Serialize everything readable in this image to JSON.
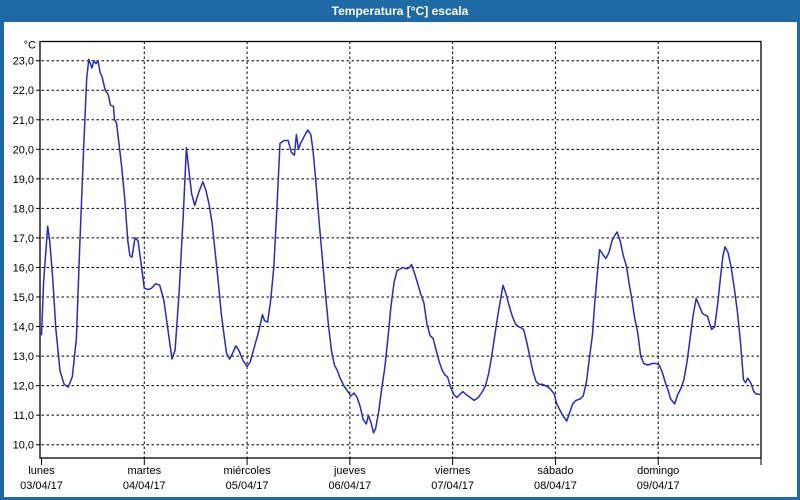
{
  "window": {
    "title": "Temperatura [°C] escala"
  },
  "colors": {
    "titlebar_bg": "#1f6aa5",
    "titlebar_text": "#ffffff",
    "window_border": "#1f6aa5",
    "canvas_bg": "#fdfefe",
    "line": "#2b2bb8",
    "grid": "#000000",
    "axis": "#000000",
    "label_text": "#000000"
  },
  "chart_data": {
    "type": "line",
    "title": "Temperatura [°C] escala",
    "y_unit_label": "°C",
    "ylim": [
      9.55,
      23.65
    ],
    "grid": "dashed",
    "legend": "none",
    "y_ticks": [
      {
        "value": 23,
        "label": "23,0"
      },
      {
        "value": 22,
        "label": "22,0"
      },
      {
        "value": 21,
        "label": "21,0"
      },
      {
        "value": 20,
        "label": "20,0"
      },
      {
        "value": 19,
        "label": "19,0"
      },
      {
        "value": 18,
        "label": "18,0"
      },
      {
        "value": 17,
        "label": "17,0"
      },
      {
        "value": 16,
        "label": "16,0"
      },
      {
        "value": 15,
        "label": "15,0"
      },
      {
        "value": 14,
        "label": "14,0"
      },
      {
        "value": 13,
        "label": "13,0"
      },
      {
        "value": 12,
        "label": "12,0"
      },
      {
        "value": 11,
        "label": "11,0"
      },
      {
        "value": 10,
        "label": "10,0"
      }
    ],
    "x_days": [
      {
        "weekday": "lunes",
        "date": "03/04/17"
      },
      {
        "weekday": "martes",
        "date": "04/04/17"
      },
      {
        "weekday": "miércoles",
        "date": "05/04/17"
      },
      {
        "weekday": "jueves",
        "date": "06/04/17"
      },
      {
        "weekday": "viernes",
        "date": "07/04/17"
      },
      {
        "weekday": "sábado",
        "date": "08/04/17"
      },
      {
        "weekday": "domingo",
        "date": "09/04/17"
      }
    ],
    "x_range_days": [
      0,
      7
    ],
    "series": [
      {
        "name": "Temperatura",
        "points": [
          [
            0.0,
            13.7
          ],
          [
            0.02,
            15.5
          ],
          [
            0.06,
            17.4
          ],
          [
            0.08,
            16.9
          ],
          [
            0.11,
            15.6
          ],
          [
            0.14,
            13.9
          ],
          [
            0.18,
            12.5
          ],
          [
            0.22,
            12.05
          ],
          [
            0.26,
            11.95
          ],
          [
            0.3,
            12.3
          ],
          [
            0.34,
            13.6
          ],
          [
            0.37,
            16.5
          ],
          [
            0.41,
            20.0
          ],
          [
            0.44,
            22.4
          ],
          [
            0.46,
            23.05
          ],
          [
            0.49,
            22.75
          ],
          [
            0.51,
            23.0
          ],
          [
            0.53,
            22.9
          ],
          [
            0.55,
            23.0
          ],
          [
            0.57,
            22.6
          ],
          [
            0.59,
            22.45
          ],
          [
            0.62,
            22.0
          ],
          [
            0.65,
            21.85
          ],
          [
            0.67,
            21.5
          ],
          [
            0.7,
            21.45
          ],
          [
            0.71,
            21.0
          ],
          [
            0.73,
            20.9
          ],
          [
            0.75,
            20.3
          ],
          [
            0.78,
            19.4
          ],
          [
            0.81,
            18.3
          ],
          [
            0.84,
            16.9
          ],
          [
            0.86,
            16.4
          ],
          [
            0.88,
            16.35
          ],
          [
            0.91,
            17.0
          ],
          [
            0.94,
            16.9
          ],
          [
            0.97,
            16.1
          ],
          [
            1.0,
            15.3
          ],
          [
            1.04,
            15.25
          ],
          [
            1.07,
            15.3
          ],
          [
            1.11,
            15.45
          ],
          [
            1.15,
            15.4
          ],
          [
            1.19,
            14.9
          ],
          [
            1.23,
            13.9
          ],
          [
            1.27,
            12.9
          ],
          [
            1.3,
            13.2
          ],
          [
            1.34,
            15.2
          ],
          [
            1.38,
            17.8
          ],
          [
            1.41,
            20.05
          ],
          [
            1.43,
            19.4
          ],
          [
            1.46,
            18.5
          ],
          [
            1.49,
            18.1
          ],
          [
            1.53,
            18.55
          ],
          [
            1.57,
            18.9
          ],
          [
            1.6,
            18.6
          ],
          [
            1.63,
            18.15
          ],
          [
            1.66,
            17.5
          ],
          [
            1.69,
            16.5
          ],
          [
            1.72,
            15.5
          ],
          [
            1.75,
            14.4
          ],
          [
            1.78,
            13.6
          ],
          [
            1.8,
            13.1
          ],
          [
            1.83,
            12.9
          ],
          [
            1.86,
            13.1
          ],
          [
            1.89,
            13.35
          ],
          [
            1.92,
            13.2
          ],
          [
            1.96,
            12.85
          ],
          [
            2.0,
            12.65
          ],
          [
            2.03,
            12.8
          ],
          [
            2.07,
            13.3
          ],
          [
            2.11,
            13.8
          ],
          [
            2.15,
            14.4
          ],
          [
            2.17,
            14.2
          ],
          [
            2.2,
            14.15
          ],
          [
            2.23,
            14.9
          ],
          [
            2.26,
            16.0
          ],
          [
            2.29,
            18.0
          ],
          [
            2.32,
            20.2
          ],
          [
            2.36,
            20.3
          ],
          [
            2.4,
            20.3
          ],
          [
            2.43,
            19.9
          ],
          [
            2.46,
            19.8
          ],
          [
            2.48,
            20.5
          ],
          [
            2.5,
            20.0
          ],
          [
            2.52,
            20.2
          ],
          [
            2.55,
            20.4
          ],
          [
            2.59,
            20.65
          ],
          [
            2.62,
            20.5
          ],
          [
            2.64,
            20.0
          ],
          [
            2.67,
            18.9
          ],
          [
            2.7,
            17.6
          ],
          [
            2.73,
            16.4
          ],
          [
            2.76,
            15.2
          ],
          [
            2.79,
            14.1
          ],
          [
            2.82,
            13.2
          ],
          [
            2.85,
            12.7
          ],
          [
            2.88,
            12.5
          ],
          [
            2.9,
            12.3
          ],
          [
            2.94,
            12.0
          ],
          [
            2.98,
            11.8
          ],
          [
            3.01,
            11.65
          ],
          [
            3.04,
            11.75
          ],
          [
            3.07,
            11.6
          ],
          [
            3.1,
            11.3
          ],
          [
            3.13,
            10.85
          ],
          [
            3.16,
            10.7
          ],
          [
            3.18,
            11.0
          ],
          [
            3.21,
            10.7
          ],
          [
            3.23,
            10.4
          ],
          [
            3.25,
            10.55
          ],
          [
            3.28,
            11.1
          ],
          [
            3.31,
            11.9
          ],
          [
            3.34,
            12.6
          ],
          [
            3.37,
            13.6
          ],
          [
            3.4,
            14.7
          ],
          [
            3.43,
            15.5
          ],
          [
            3.46,
            15.9
          ],
          [
            3.49,
            15.95
          ],
          [
            3.52,
            16.0
          ],
          [
            3.55,
            15.95
          ],
          [
            3.58,
            16.0
          ],
          [
            3.6,
            16.1
          ],
          [
            3.63,
            15.8
          ],
          [
            3.66,
            15.45
          ],
          [
            3.69,
            15.1
          ],
          [
            3.72,
            14.8
          ],
          [
            3.75,
            14.1
          ],
          [
            3.78,
            13.7
          ],
          [
            3.81,
            13.6
          ],
          [
            3.84,
            13.2
          ],
          [
            3.87,
            12.8
          ],
          [
            3.9,
            12.5
          ],
          [
            3.93,
            12.35
          ],
          [
            3.95,
            12.3
          ],
          [
            3.98,
            11.95
          ],
          [
            4.01,
            11.7
          ],
          [
            4.04,
            11.6
          ],
          [
            4.07,
            11.7
          ],
          [
            4.1,
            11.8
          ],
          [
            4.13,
            11.7
          ],
          [
            4.17,
            11.6
          ],
          [
            4.21,
            11.5
          ],
          [
            4.25,
            11.6
          ],
          [
            4.29,
            11.8
          ],
          [
            4.32,
            12.0
          ],
          [
            4.35,
            12.4
          ],
          [
            4.38,
            13.0
          ],
          [
            4.41,
            13.7
          ],
          [
            4.44,
            14.4
          ],
          [
            4.47,
            15.0
          ],
          [
            4.49,
            15.4
          ],
          [
            4.52,
            15.1
          ],
          [
            4.55,
            14.7
          ],
          [
            4.58,
            14.35
          ],
          [
            4.61,
            14.1
          ],
          [
            4.64,
            14.0
          ],
          [
            4.67,
            13.95
          ],
          [
            4.69,
            13.9
          ],
          [
            4.72,
            13.5
          ],
          [
            4.75,
            13.0
          ],
          [
            4.78,
            12.5
          ],
          [
            4.81,
            12.15
          ],
          [
            4.84,
            12.05
          ],
          [
            4.87,
            12.05
          ],
          [
            4.9,
            12.0
          ],
          [
            4.93,
            11.95
          ],
          [
            4.96,
            11.85
          ],
          [
            4.99,
            11.7
          ],
          [
            5.01,
            11.4
          ],
          [
            5.04,
            11.2
          ],
          [
            5.07,
            11.0
          ],
          [
            5.11,
            10.8
          ],
          [
            5.14,
            11.1
          ],
          [
            5.17,
            11.4
          ],
          [
            5.2,
            11.5
          ],
          [
            5.24,
            11.55
          ],
          [
            5.27,
            11.65
          ],
          [
            5.3,
            12.1
          ],
          [
            5.33,
            12.9
          ],
          [
            5.36,
            13.7
          ],
          [
            5.38,
            14.7
          ],
          [
            5.41,
            15.9
          ],
          [
            5.43,
            16.6
          ],
          [
            5.46,
            16.45
          ],
          [
            5.49,
            16.3
          ],
          [
            5.52,
            16.5
          ],
          [
            5.55,
            16.9
          ],
          [
            5.58,
            17.1
          ],
          [
            5.6,
            17.2
          ],
          [
            5.63,
            16.9
          ],
          [
            5.66,
            16.4
          ],
          [
            5.69,
            16.05
          ],
          [
            5.72,
            15.4
          ],
          [
            5.74,
            15.0
          ],
          [
            5.77,
            14.3
          ],
          [
            5.8,
            13.8
          ],
          [
            5.83,
            13.0
          ],
          [
            5.86,
            12.75
          ],
          [
            5.9,
            12.7
          ],
          [
            5.94,
            12.75
          ],
          [
            5.98,
            12.75
          ],
          [
            6.01,
            12.7
          ],
          [
            6.04,
            12.45
          ],
          [
            6.07,
            12.1
          ],
          [
            6.1,
            11.8
          ],
          [
            6.12,
            11.55
          ],
          [
            6.16,
            11.38
          ],
          [
            6.19,
            11.7
          ],
          [
            6.22,
            11.9
          ],
          [
            6.25,
            12.2
          ],
          [
            6.28,
            12.8
          ],
          [
            6.31,
            13.6
          ],
          [
            6.34,
            14.4
          ],
          [
            6.37,
            14.95
          ],
          [
            6.4,
            14.7
          ],
          [
            6.43,
            14.45
          ],
          [
            6.45,
            14.4
          ],
          [
            6.48,
            14.35
          ],
          [
            6.5,
            14.1
          ],
          [
            6.52,
            13.9
          ],
          [
            6.55,
            14.0
          ],
          [
            6.58,
            14.8
          ],
          [
            6.61,
            15.8
          ],
          [
            6.63,
            16.4
          ],
          [
            6.65,
            16.7
          ],
          [
            6.68,
            16.5
          ],
          [
            6.71,
            16.0
          ],
          [
            6.74,
            15.3
          ],
          [
            6.77,
            14.5
          ],
          [
            6.8,
            13.5
          ],
          [
            6.83,
            12.2
          ],
          [
            6.85,
            12.1
          ],
          [
            6.87,
            12.25
          ],
          [
            6.9,
            12.1
          ],
          [
            6.93,
            11.8
          ],
          [
            6.95,
            11.72
          ],
          [
            6.99,
            11.7
          ]
        ]
      }
    ]
  }
}
